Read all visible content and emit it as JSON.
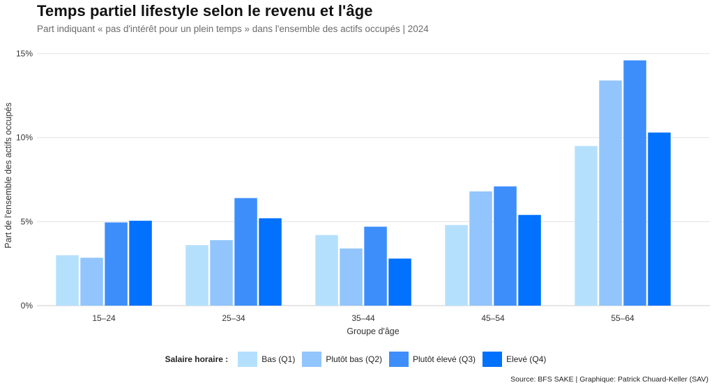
{
  "title": "Temps partiel lifestyle selon le revenu et l'âge",
  "subtitle": "Part indiquant « pas d'intérêt pour un plein temps » dans l'ensemble des actifs occupés | 2024",
  "source": "Source: BFS SAKE | Graphique: Patrick Chuard-Keller (SAV)",
  "legend": {
    "title": "Salaire horaire :"
  },
  "chart_data": {
    "type": "bar",
    "categories": [
      "15–24",
      "25–34",
      "35–44",
      "45–54",
      "55–64"
    ],
    "series": [
      {
        "name": "Bas (Q1)",
        "color": "#b5e0fd",
        "values": [
          3.0,
          3.6,
          4.2,
          4.8,
          9.5
        ]
      },
      {
        "name": "Plutôt bas (Q2)",
        "color": "#92c5fc",
        "values": [
          2.85,
          3.9,
          3.4,
          6.8,
          13.4
        ]
      },
      {
        "name": "Plutôt élevé (Q3)",
        "color": "#3d8efb",
        "values": [
          4.95,
          6.4,
          4.7,
          7.1,
          14.6
        ]
      },
      {
        "name": "Elevé (Q4)",
        "color": "#0171fe",
        "values": [
          5.05,
          5.2,
          2.8,
          5.4,
          10.3
        ]
      }
    ],
    "xlabel": "Groupe d'âge",
    "ylabel": "Part de l'ensemble des actifs occupés",
    "ylim": [
      0,
      15
    ],
    "yticks": [
      0,
      5,
      10,
      15
    ],
    "ytick_labels": [
      "0%",
      "5%",
      "10%",
      "15%"
    ],
    "grid": true,
    "legend_position": "bottom"
  }
}
